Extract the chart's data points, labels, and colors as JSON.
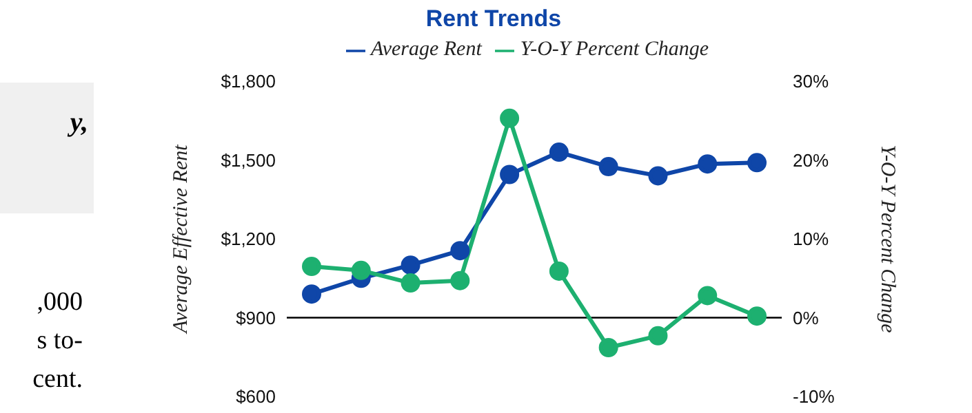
{
  "chart_data": {
    "type": "line",
    "title": "Rent Trends",
    "categories": [
      null,
      null,
      null,
      null,
      null,
      null,
      null,
      null,
      null,
      null
    ],
    "series": [
      {
        "name": "Average Rent",
        "color": "#0f46a8",
        "values": [
          990,
          1050,
          1100,
          1155,
          1445,
          1530,
          1475,
          1440,
          1485,
          1490
        ]
      },
      {
        "name": "Y-O-Y Percent Change",
        "color": "#1db070",
        "axis": "y2",
        "values": [
          6.5,
          6.0,
          4.4,
          4.7,
          25.3,
          5.9,
          -3.8,
          -2.3,
          2.8,
          0.2
        ]
      }
    ],
    "ylabel": "Average Effective Rent",
    "y2label": "Y-O-Y Percent Change",
    "ylim": [
      600,
      1800
    ],
    "yticks": [
      {
        "value": 600,
        "label": "$600"
      },
      {
        "value": 900,
        "label": "$900"
      },
      {
        "value": 1200,
        "label": "$1,200"
      },
      {
        "value": 1500,
        "label": "$1,500"
      },
      {
        "value": 1800,
        "label": "$1,800"
      }
    ],
    "y2lim": [
      -10,
      30
    ],
    "y2ticks": [
      {
        "value": -10,
        "label": "-10%"
      },
      {
        "value": 0,
        "label": "0%"
      },
      {
        "value": 10,
        "label": "10%"
      },
      {
        "value": 20,
        "label": "20%"
      },
      {
        "value": 30,
        "label": "30%"
      }
    ],
    "ref_lines": [
      {
        "axis": "y2",
        "value": 0,
        "color": "#000000"
      }
    ],
    "legend": "top",
    "marker": "circle",
    "line_style": "solid",
    "grid": false,
    "tick_labels": "y",
    "annotations": [
      "y,",
      ",000",
      "s to-",
      "cent."
    ]
  }
}
